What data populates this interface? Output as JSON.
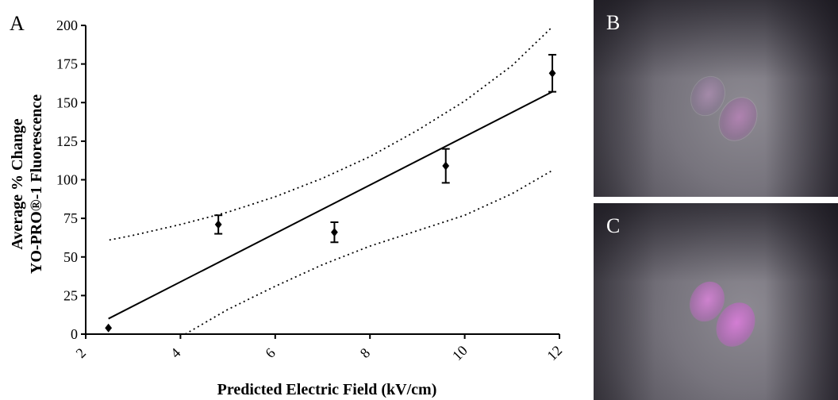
{
  "panel_labels": {
    "a": "A",
    "b": "B",
    "c": "C"
  },
  "chart_data": {
    "type": "scatter",
    "title": "",
    "xlabel": "Predicted Electric Field (kV/cm)",
    "ylabel": [
      "Average % Change",
      "YO-PRO®-1  Fluorescence"
    ],
    "xlim": [
      2,
      12
    ],
    "ylim": [
      0,
      200
    ],
    "xticks": [
      2,
      4,
      6,
      8,
      10,
      12
    ],
    "yticks": [
      0,
      25,
      50,
      75,
      100,
      125,
      150,
      175,
      200
    ],
    "grid": false,
    "points": [
      {
        "x": 2.48,
        "y": 4,
        "err": 0
      },
      {
        "x": 4.8,
        "y": 71,
        "err": 6
      },
      {
        "x": 7.25,
        "y": 66,
        "err": 6.5
      },
      {
        "x": 9.6,
        "y": 109,
        "err": 11
      },
      {
        "x": 11.85,
        "y": 169,
        "err": 12
      }
    ],
    "fit_line": {
      "x": [
        2.48,
        11.85
      ],
      "y": [
        10,
        157
      ]
    },
    "confidence_band": {
      "upper": [
        [
          2.5,
          61
        ],
        [
          3,
          64
        ],
        [
          4,
          71
        ],
        [
          5,
          79
        ],
        [
          6,
          89
        ],
        [
          7,
          101
        ],
        [
          8,
          115
        ],
        [
          9,
          132
        ],
        [
          10,
          151
        ],
        [
          11,
          174
        ],
        [
          11.85,
          199
        ]
      ],
      "lower": [
        [
          4.1,
          0
        ],
        [
          5,
          16
        ],
        [
          6,
          31
        ],
        [
          7,
          45
        ],
        [
          8,
          57
        ],
        [
          9,
          67
        ],
        [
          10,
          77
        ],
        [
          11,
          91
        ],
        [
          11.85,
          106
        ]
      ]
    }
  },
  "colors": {
    "ink": "#000000",
    "micrograph_bg": "#6d6a73",
    "cell_faint": "#a58aa8",
    "cell_bright": "#c78ac8"
  }
}
